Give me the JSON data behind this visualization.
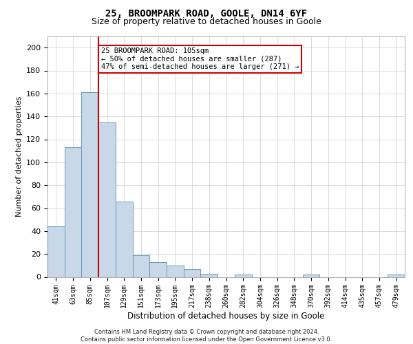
{
  "title1": "25, BROOMPARK ROAD, GOOLE, DN14 6YF",
  "title2": "Size of property relative to detached houses in Goole",
  "xlabel": "Distribution of detached houses by size in Goole",
  "ylabel": "Number of detached properties",
  "bar_labels": [
    "41sqm",
    "63sqm",
    "85sqm",
    "107sqm",
    "129sqm",
    "151sqm",
    "173sqm",
    "195sqm",
    "217sqm",
    "238sqm",
    "260sqm",
    "282sqm",
    "304sqm",
    "326sqm",
    "348sqm",
    "370sqm",
    "392sqm",
    "414sqm",
    "435sqm",
    "457sqm",
    "479sqm"
  ],
  "bar_values": [
    44,
    113,
    161,
    135,
    66,
    19,
    13,
    10,
    7,
    3,
    0,
    2,
    0,
    0,
    0,
    2,
    0,
    0,
    0,
    0,
    2
  ],
  "bar_color": "#c8d8e8",
  "bar_edge_color": "#6699bb",
  "vline_x_idx": 2.5,
  "vline_color": "#cc0000",
  "annotation_text": "25 BROOMPARK ROAD: 105sqm\n← 50% of detached houses are smaller (287)\n47% of semi-detached houses are larger (271) →",
  "annotation_box_color": "#ffffff",
  "annotation_box_edge_color": "#cc0000",
  "ylim": [
    0,
    210
  ],
  "yticks": [
    0,
    20,
    40,
    60,
    80,
    100,
    120,
    140,
    160,
    180,
    200
  ],
  "footer_text": "Contains HM Land Registry data © Crown copyright and database right 2024.\nContains public sector information licensed under the Open Government Licence v3.0.",
  "bg_color": "#ffffff",
  "grid_color": "#cccccc",
  "title1_fontsize": 10,
  "title2_fontsize": 9,
  "ylabel_fontsize": 8,
  "xlabel_fontsize": 8.5,
  "tick_fontsize": 7,
  "footer_fontsize": 6,
  "annotation_fontsize": 7.5
}
